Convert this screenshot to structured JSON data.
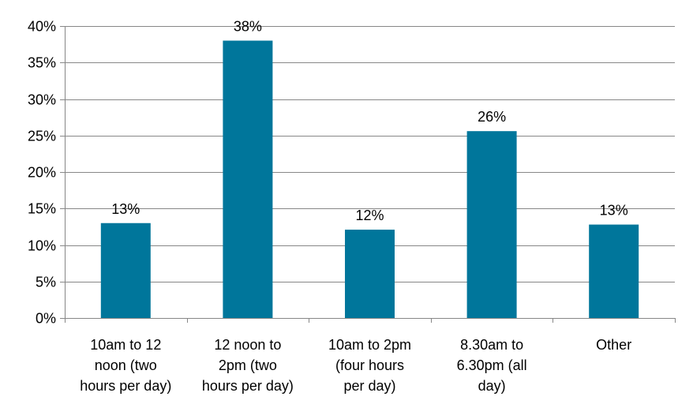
{
  "chart_data": {
    "type": "bar",
    "title": "",
    "xlabel": "",
    "ylabel": "",
    "categories": [
      [
        "10am to 12",
        "noon (two",
        "hours per day)"
      ],
      [
        "12 noon to",
        "2pm (two",
        "hours per day)"
      ],
      [
        "10am to 2pm",
        "(four hours",
        "per day)"
      ],
      [
        "8.30am to",
        "6.30pm (all",
        "day)"
      ],
      [
        "Other"
      ]
    ],
    "values": [
      0.13,
      0.38,
      0.121,
      0.256,
      0.128
    ],
    "data_labels": [
      "13%",
      "38%",
      "12%",
      "26%",
      "13%"
    ],
    "ylim": [
      0,
      0.4
    ],
    "yticks": [
      0,
      0.05,
      0.1,
      0.15,
      0.2,
      0.25,
      0.3,
      0.35,
      0.4
    ],
    "ytick_labels": [
      "0%",
      "5%",
      "10%",
      "15%",
      "20%",
      "25%",
      "30%",
      "35%",
      "40%"
    ],
    "grid": true,
    "legend": "none",
    "bar_color": "#00769B",
    "grid_color": "#878787"
  }
}
